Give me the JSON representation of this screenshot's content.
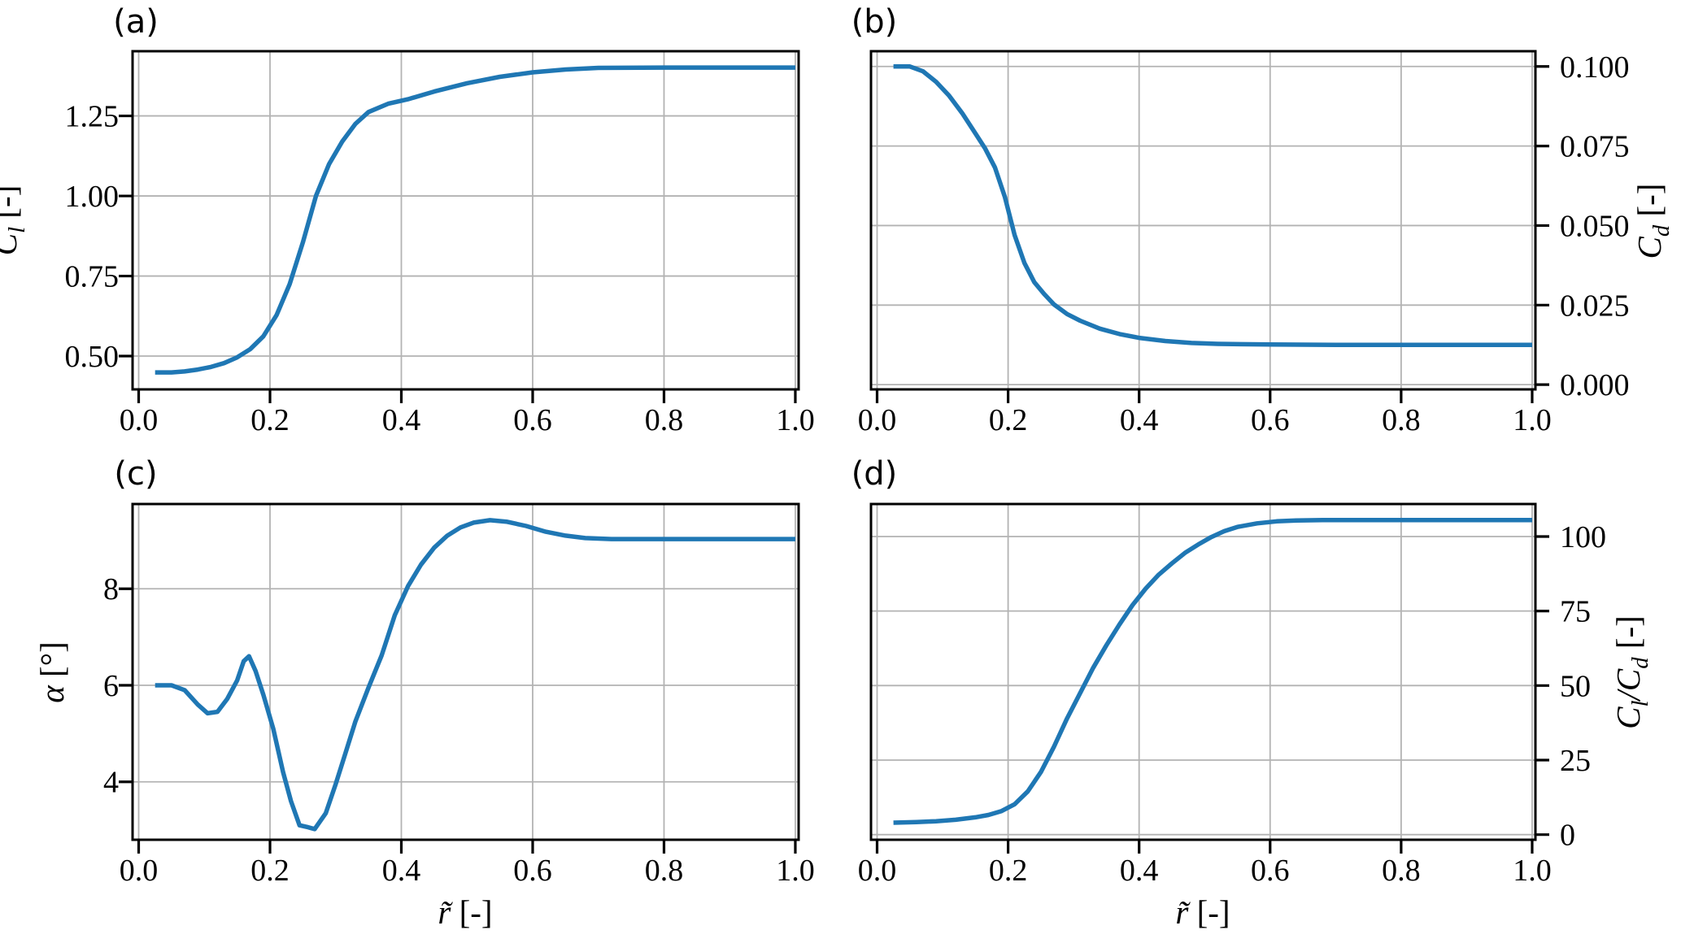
{
  "styles": {
    "line_color": "#1f77b4",
    "grid_color": "#b3b3b3",
    "spine_color": "#000000",
    "text_color": "#000000",
    "background": "#ffffff"
  },
  "chart_data": [
    {
      "id": "a",
      "type": "line",
      "title": "(a)",
      "xlabel": "",
      "ylabel": "C_l [-]",
      "ylabel_segments": [
        {
          "t": "C",
          "s": "i"
        },
        {
          "t": "l",
          "s": "sub"
        },
        {
          "t": " [-]",
          "s": "n"
        }
      ],
      "xlabel_segments": null,
      "y_axis_side": "left",
      "grid": true,
      "legend": null,
      "xlim": [
        -0.0093,
        1.005
      ],
      "ylim": [
        0.396,
        1.452
      ],
      "xticks": [
        0.0,
        0.2,
        0.4,
        0.6,
        0.8,
        1.0
      ],
      "xtick_labels": [
        "0.0",
        "0.2",
        "0.4",
        "0.6",
        "0.8",
        "1.0"
      ],
      "yticks": [
        0.5,
        0.75,
        1.0,
        1.25
      ],
      "ytick_labels": [
        "0.50",
        "0.75",
        "1.00",
        "1.25"
      ],
      "series": [
        {
          "name": "C_l",
          "x": [
            0.025,
            0.05,
            0.07,
            0.09,
            0.11,
            0.13,
            0.15,
            0.17,
            0.19,
            0.21,
            0.23,
            0.25,
            0.27,
            0.29,
            0.31,
            0.33,
            0.35,
            0.38,
            0.41,
            0.45,
            0.5,
            0.55,
            0.6,
            0.65,
            0.7,
            0.8,
            0.9,
            1.0
          ],
          "y": [
            0.449,
            0.449,
            0.452,
            0.458,
            0.466,
            0.478,
            0.496,
            0.522,
            0.562,
            0.628,
            0.725,
            0.855,
            1.0,
            1.1,
            1.17,
            1.225,
            1.262,
            1.288,
            1.302,
            1.326,
            1.352,
            1.372,
            1.386,
            1.395,
            1.4,
            1.401,
            1.401,
            1.401
          ]
        }
      ]
    },
    {
      "id": "b",
      "type": "line",
      "title": "(b)",
      "xlabel": "",
      "ylabel": "C_d [-]",
      "ylabel_segments": [
        {
          "t": "C",
          "s": "i"
        },
        {
          "t": "d",
          "s": "sub"
        },
        {
          "t": " [-]",
          "s": "n"
        }
      ],
      "xlabel_segments": null,
      "y_axis_side": "right",
      "grid": true,
      "legend": null,
      "xlim": [
        -0.0093,
        1.005
      ],
      "ylim": [
        -0.0015,
        0.1048
      ],
      "xticks": [
        0.0,
        0.2,
        0.4,
        0.6,
        0.8,
        1.0
      ],
      "xtick_labels": [
        "0.0",
        "0.2",
        "0.4",
        "0.6",
        "0.8",
        "1.0"
      ],
      "yticks": [
        0.0,
        0.025,
        0.05,
        0.075,
        0.1
      ],
      "ytick_labels": [
        "0.000",
        "0.025",
        "0.050",
        "0.075",
        "0.100"
      ],
      "series": [
        {
          "name": "C_d",
          "x": [
            0.025,
            0.05,
            0.07,
            0.09,
            0.11,
            0.13,
            0.15,
            0.165,
            0.18,
            0.195,
            0.21,
            0.225,
            0.24,
            0.255,
            0.27,
            0.29,
            0.31,
            0.34,
            0.37,
            0.4,
            0.44,
            0.48,
            0.52,
            0.6,
            0.7,
            0.85,
            1.0
          ],
          "y": [
            0.1,
            0.1,
            0.0985,
            0.0952,
            0.0908,
            0.0853,
            0.079,
            0.0742,
            0.0682,
            0.059,
            0.047,
            0.0382,
            0.0322,
            0.0285,
            0.0252,
            0.0222,
            0.0201,
            0.0176,
            0.0159,
            0.0147,
            0.0137,
            0.0131,
            0.0128,
            0.0126,
            0.0125,
            0.0125,
            0.0125
          ]
        }
      ]
    },
    {
      "id": "c",
      "type": "line",
      "title": "(c)",
      "xlabel": "r̃ [-]",
      "ylabel": "α [°]",
      "ylabel_segments": [
        {
          "t": "α",
          "s": "i"
        },
        {
          "t": " [°]",
          "s": "n"
        }
      ],
      "xlabel_segments": [
        {
          "t": "r̃",
          "s": "i"
        },
        {
          "t": " [-]",
          "s": "n"
        }
      ],
      "y_axis_side": "left",
      "grid": true,
      "legend": null,
      "xlim": [
        -0.0093,
        1.005
      ],
      "ylim": [
        2.8,
        9.755
      ],
      "xticks": [
        0.0,
        0.2,
        0.4,
        0.6,
        0.8,
        1.0
      ],
      "xtick_labels": [
        "0.0",
        "0.2",
        "0.4",
        "0.6",
        "0.8",
        "1.0"
      ],
      "yticks": [
        4,
        6,
        8
      ],
      "ytick_labels": [
        "4",
        "6",
        "8"
      ],
      "series": [
        {
          "name": "alpha",
          "x": [
            0.025,
            0.05,
            0.07,
            0.09,
            0.105,
            0.12,
            0.135,
            0.15,
            0.16,
            0.168,
            0.178,
            0.19,
            0.205,
            0.22,
            0.232,
            0.245,
            0.258,
            0.268,
            0.285,
            0.3,
            0.315,
            0.33,
            0.35,
            0.37,
            0.39,
            0.41,
            0.43,
            0.45,
            0.47,
            0.49,
            0.51,
            0.535,
            0.56,
            0.59,
            0.62,
            0.65,
            0.68,
            0.72,
            0.8,
            0.9,
            1.0
          ],
          "y": [
            6.0,
            6.0,
            5.9,
            5.6,
            5.42,
            5.45,
            5.72,
            6.1,
            6.5,
            6.6,
            6.3,
            5.8,
            5.1,
            4.2,
            3.6,
            3.1,
            3.06,
            3.02,
            3.35,
            3.95,
            4.6,
            5.25,
            5.95,
            6.62,
            7.45,
            8.05,
            8.5,
            8.85,
            9.1,
            9.27,
            9.37,
            9.42,
            9.39,
            9.3,
            9.18,
            9.1,
            9.05,
            9.03,
            9.03,
            9.03,
            9.03
          ]
        }
      ]
    },
    {
      "id": "d",
      "type": "line",
      "title": "(d)",
      "xlabel": "r̃ [-]",
      "ylabel": "C_l/C_d [-]",
      "ylabel_segments": [
        {
          "t": "C",
          "s": "i"
        },
        {
          "t": "l",
          "s": "sub"
        },
        {
          "t": "/",
          "s": "i"
        },
        {
          "t": "C",
          "s": "i"
        },
        {
          "t": "d",
          "s": "sub"
        },
        {
          "t": " [-]",
          "s": "n"
        }
      ],
      "xlabel_segments": [
        {
          "t": "r̃",
          "s": "i"
        },
        {
          "t": " [-]",
          "s": "n"
        }
      ],
      "y_axis_side": "right",
      "grid": true,
      "legend": null,
      "xlim": [
        -0.0093,
        1.005
      ],
      "ylim": [
        -1.72,
        110.9
      ],
      "xticks": [
        0.0,
        0.2,
        0.4,
        0.6,
        0.8,
        1.0
      ],
      "xtick_labels": [
        "0.0",
        "0.2",
        "0.4",
        "0.6",
        "0.8",
        "1.0"
      ],
      "yticks": [
        0,
        25,
        50,
        75,
        100
      ],
      "ytick_labels": [
        "0",
        "25",
        "50",
        "75",
        "100"
      ],
      "series": [
        {
          "name": "Cl/Cd",
          "x": [
            0.025,
            0.06,
            0.09,
            0.12,
            0.15,
            0.17,
            0.19,
            0.21,
            0.23,
            0.25,
            0.27,
            0.29,
            0.31,
            0.33,
            0.35,
            0.37,
            0.39,
            0.41,
            0.43,
            0.45,
            0.47,
            0.49,
            0.51,
            0.53,
            0.55,
            0.58,
            0.61,
            0.64,
            0.68,
            0.72,
            0.8,
            0.9,
            1.0
          ],
          "y": [
            4.0,
            4.2,
            4.5,
            5.0,
            5.8,
            6.6,
            7.9,
            10.2,
            14.5,
            21.0,
            29.5,
            39.0,
            47.5,
            56.0,
            63.5,
            70.5,
            77.0,
            82.5,
            87.2,
            91.0,
            94.5,
            97.3,
            99.8,
            101.8,
            103.2,
            104.4,
            105.1,
            105.4,
            105.5,
            105.5,
            105.5,
            105.5,
            105.5
          ]
        }
      ]
    }
  ]
}
